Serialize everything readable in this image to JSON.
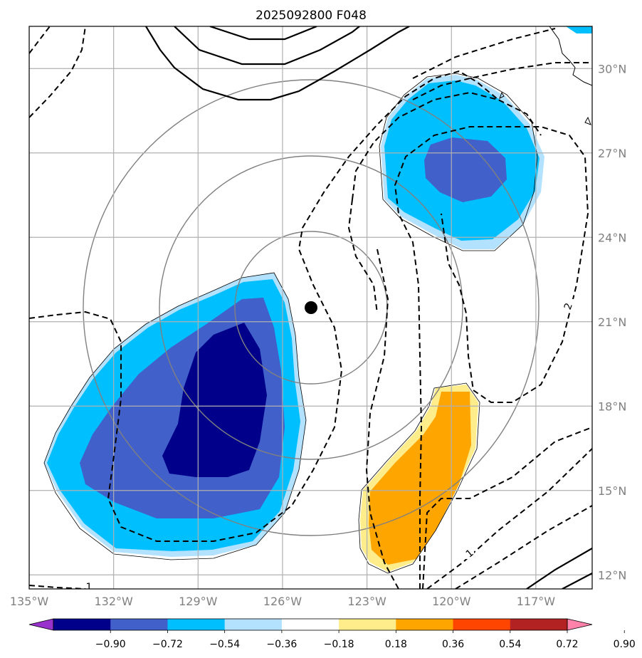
{
  "chart_data": {
    "type": "contour_map",
    "title": "2025092800 F048",
    "x_ticks": [
      "135°W",
      "132°W",
      "129°W",
      "126°W",
      "123°W",
      "120°W",
      "117°W"
    ],
    "x_values": [
      -135,
      -132,
      -129,
      -126,
      -123,
      -120,
      -117
    ],
    "y_ticks": [
      "30°N",
      "27°N",
      "24°N",
      "21°N",
      "18°N",
      "15°N",
      "12°N"
    ],
    "y_values": [
      30,
      27,
      24,
      21,
      18,
      15,
      12
    ],
    "xlim": [
      -135,
      -115
    ],
    "ylim": [
      11.5,
      31.5
    ],
    "grid": true,
    "center": {
      "lon": -125.07,
      "lat": 21.5
    },
    "range_rings_deg": [
      2.7,
      5.4,
      8.1
    ],
    "contour_labels": [
      "2",
      "1",
      "1"
    ],
    "colorbar": {
      "ticks": [
        "−0.90",
        "−0.72",
        "−0.54",
        "−0.36",
        "−0.18",
        "0.18",
        "0.36",
        "0.54",
        "0.72",
        "0.90"
      ],
      "levels": [
        -0.9,
        -0.72,
        -0.54,
        -0.36,
        -0.18,
        0.18,
        0.36,
        0.54,
        0.72,
        0.9
      ],
      "colors": [
        "#9932cc",
        "#00008b",
        "#4160c9",
        "#00bfff",
        "#b2e2ff",
        "#ffffff",
        "#ffec8b",
        "#ffa500",
        "#ff4500",
        "#b22222",
        "#ff82ab"
      ]
    }
  }
}
